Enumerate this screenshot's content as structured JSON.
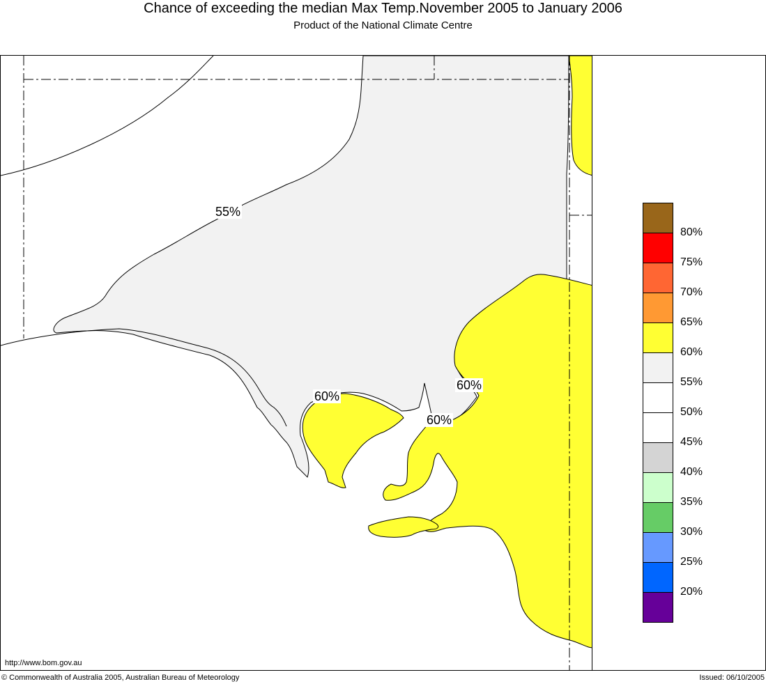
{
  "title": "Chance of exceeding the median Max Temp.November 2005 to January 2006",
  "subtitle": "Product of the National Climate Centre",
  "contour_labels": [
    "55%",
    "60%",
    "60%",
    "60%"
  ],
  "legend": {
    "colors": [
      "#99661a",
      "#ff0000",
      "#ff6633",
      "#ff9933",
      "#ffff33",
      "#f2f2f2",
      "#ffffff",
      "#ffffff",
      "#d4d4d4",
      "#ccffcc",
      "#66cc66",
      "#6699ff",
      "#0066ff",
      "#660099"
    ],
    "labels": [
      "80%",
      "75%",
      "70%",
      "65%",
      "60%",
      "55%",
      "50%",
      "45%",
      "40%",
      "35%",
      "30%",
      "25%",
      "20%"
    ]
  },
  "colors": {
    "grey_zone": "#f2f2f2",
    "yellow_zone": "#ffff33"
  },
  "url": "http://www.bom.gov.au",
  "copyright": "© Commonwealth of Australia 2005, Australian Bureau of Meteorology",
  "issued": "Issued: 06/10/2005"
}
